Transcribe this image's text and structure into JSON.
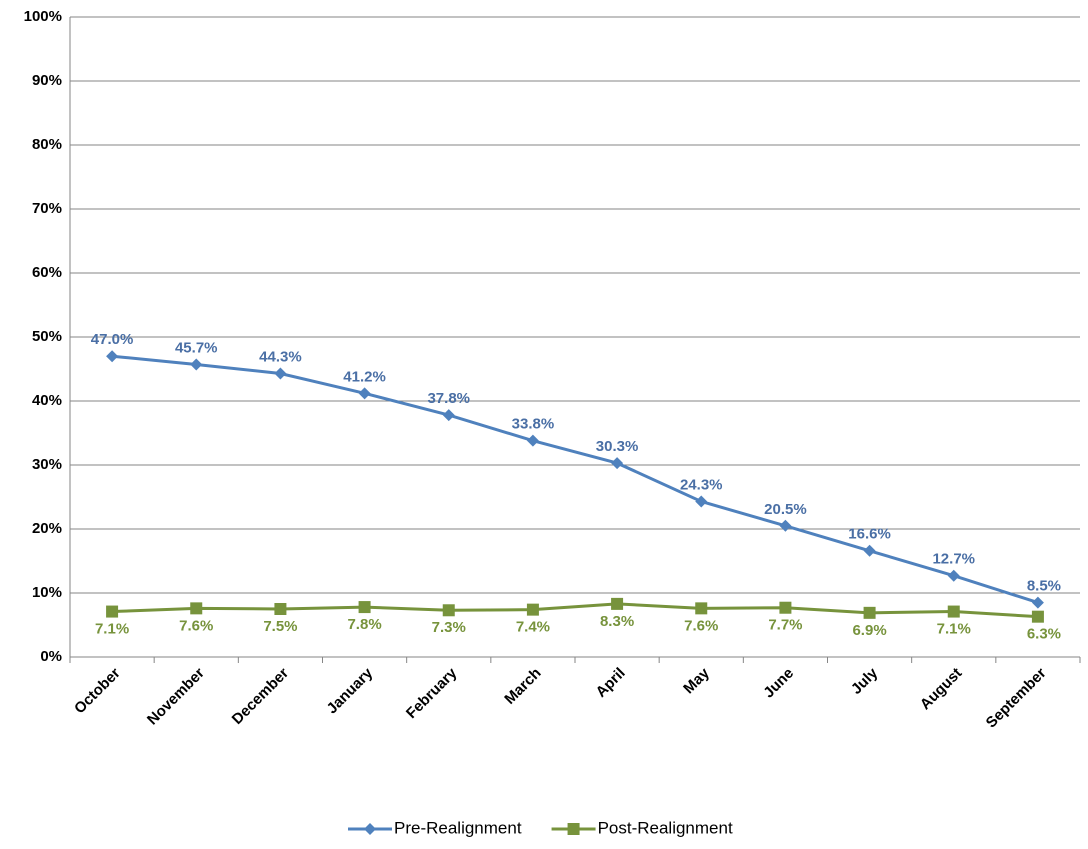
{
  "chart_data": {
    "type": "line",
    "categories": [
      "October",
      "November",
      "December",
      "January",
      "February",
      "March",
      "April",
      "May",
      "June",
      "July",
      "August",
      "September"
    ],
    "series": [
      {
        "name": "Pre-Realignment",
        "color": "#4f81bd",
        "marker": "diamond",
        "values": [
          47.0,
          45.7,
          44.3,
          41.2,
          37.8,
          33.8,
          30.3,
          24.3,
          20.5,
          16.6,
          12.7,
          8.5
        ],
        "value_labels": [
          "47.0%",
          "45.7%",
          "44.3%",
          "41.2%",
          "37.8%",
          "33.8%",
          "30.3%",
          "24.3%",
          "20.5%",
          "16.6%",
          "12.7%",
          "8.5%"
        ]
      },
      {
        "name": "Post-Realignment",
        "color": "#77933c",
        "marker": "square",
        "values": [
          7.1,
          7.6,
          7.5,
          7.8,
          7.3,
          7.4,
          8.3,
          7.6,
          7.7,
          6.9,
          7.1,
          6.3
        ],
        "value_labels": [
          "7.1%",
          "7.6%",
          "7.5%",
          "7.8%",
          "7.3%",
          "7.4%",
          "8.3%",
          "7.6%",
          "7.7%",
          "6.9%",
          "7.1%",
          "6.3%"
        ]
      }
    ],
    "ylim": [
      0,
      100
    ],
    "yticks": [
      {
        "value": 0,
        "label": "0%"
      },
      {
        "value": 10,
        "label": "10%"
      },
      {
        "value": 20,
        "label": "20%"
      },
      {
        "value": 30,
        "label": "30%"
      },
      {
        "value": 40,
        "label": "40%"
      },
      {
        "value": 50,
        "label": "50%"
      },
      {
        "value": 60,
        "label": "60%"
      },
      {
        "value": 70,
        "label": "70%"
      },
      {
        "value": 80,
        "label": "80%"
      },
      {
        "value": 90,
        "label": "90%"
      },
      {
        "value": 100,
        "label": "100%"
      }
    ],
    "grid": true,
    "legend": "bottom"
  }
}
